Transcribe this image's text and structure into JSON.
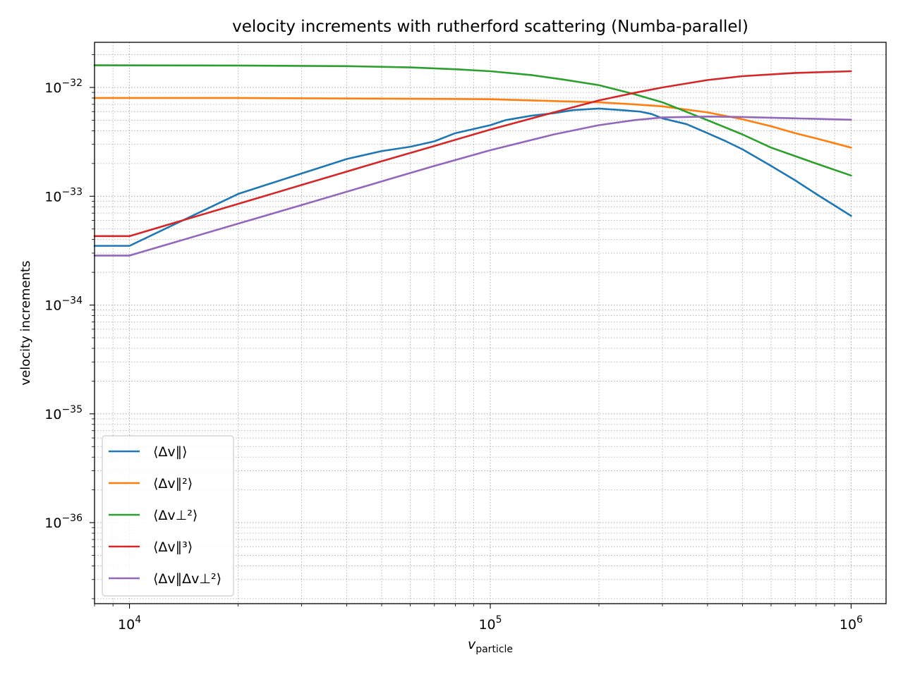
{
  "chart_data": {
    "type": "line",
    "title": "velocity increments with rutherford scattering (Numba-parallel)",
    "xlabel": "v_particle",
    "ylabel": "velocity increments",
    "xscale": "log",
    "yscale": "log",
    "xlim": [
      8000,
      1250000
    ],
    "ylim": [
      1.8e-37,
      2.6e-32
    ],
    "grid": true,
    "grid_style": "dotted, major and minor",
    "legend_position": "lower-left",
    "x_ticks": [
      {
        "value": 10000,
        "base": "10",
        "exp": "4"
      },
      {
        "value": 100000,
        "base": "10",
        "exp": "5"
      },
      {
        "value": 1000000,
        "base": "10",
        "exp": "6"
      }
    ],
    "y_ticks": [
      {
        "value": 1e-32,
        "base": "10",
        "exp": "−32"
      },
      {
        "value": 1e-33,
        "base": "10",
        "exp": "−33"
      },
      {
        "value": 1e-34,
        "base": "10",
        "exp": "−34"
      },
      {
        "value": 1e-35,
        "base": "10",
        "exp": "−35"
      },
      {
        "value": 1e-36,
        "base": "10",
        "exp": "−36"
      }
    ],
    "series": [
      {
        "name": "⟨Δv∥⟩",
        "color": "#1f77b4",
        "points": [
          [
            8000,
            3.5e-34
          ],
          [
            10000,
            3.5e-34
          ],
          [
            20000,
            1.05e-33
          ],
          [
            30000,
            1.62e-33
          ],
          [
            40000,
            2.2e-33
          ],
          [
            50000,
            2.6e-33
          ],
          [
            60000,
            2.85e-33
          ],
          [
            70000,
            3.2e-33
          ],
          [
            80000,
            3.8e-33
          ],
          [
            100000,
            4.5e-33
          ],
          [
            110000,
            5e-33
          ],
          [
            130000,
            5.5e-33
          ],
          [
            150000,
            5.8e-33
          ],
          [
            170000,
            6.2e-33
          ],
          [
            200000,
            6.4e-33
          ],
          [
            230000,
            6.2e-33
          ],
          [
            260000,
            6e-33
          ],
          [
            280000,
            5.7e-33
          ],
          [
            300000,
            5.2e-33
          ],
          [
            350000,
            4.6e-33
          ],
          [
            400000,
            3.8e-33
          ],
          [
            450000,
            3.2e-33
          ],
          [
            500000,
            2.7e-33
          ],
          [
            600000,
            1.9e-33
          ],
          [
            700000,
            1.4e-33
          ],
          [
            800000,
            1.05e-33
          ],
          [
            1000000,
            6.6e-34
          ]
        ]
      },
      {
        "name": "⟨Δv∥²⟩",
        "color": "#ff7f0e",
        "points": [
          [
            8000,
            8e-33
          ],
          [
            20000,
            8e-33
          ],
          [
            50000,
            7.9e-33
          ],
          [
            100000,
            7.8e-33
          ],
          [
            150000,
            7.5e-33
          ],
          [
            200000,
            7.3e-33
          ],
          [
            250000,
            7e-33
          ],
          [
            300000,
            6.7e-33
          ],
          [
            400000,
            5.9e-33
          ],
          [
            500000,
            5.1e-33
          ],
          [
            600000,
            4.4e-33
          ],
          [
            700000,
            3.8e-33
          ],
          [
            800000,
            3.4e-33
          ],
          [
            1000000,
            2.8e-33
          ]
        ]
      },
      {
        "name": "⟨Δv⊥²⟩",
        "color": "#2ca02c",
        "points": [
          [
            8000,
            1.6e-32
          ],
          [
            20000,
            1.59e-32
          ],
          [
            40000,
            1.57e-32
          ],
          [
            60000,
            1.53e-32
          ],
          [
            80000,
            1.47e-32
          ],
          [
            100000,
            1.41e-32
          ],
          [
            130000,
            1.3e-32
          ],
          [
            160000,
            1.18e-32
          ],
          [
            200000,
            1.05e-32
          ],
          [
            250000,
            8.7e-33
          ],
          [
            300000,
            7.3e-33
          ],
          [
            400000,
            5e-33
          ],
          [
            500000,
            3.7e-33
          ],
          [
            600000,
            2.8e-33
          ],
          [
            800000,
            2e-33
          ],
          [
            1000000,
            1.55e-33
          ]
        ]
      },
      {
        "name": "⟨Δv∥³⟩",
        "color": "#d62728",
        "points": [
          [
            8000,
            4.3e-34
          ],
          [
            10000,
            4.3e-34
          ],
          [
            20000,
            8.5e-34
          ],
          [
            30000,
            1.27e-33
          ],
          [
            50000,
            2.1e-33
          ],
          [
            70000,
            2.9e-33
          ],
          [
            100000,
            4.1e-33
          ],
          [
            150000,
            5.9e-33
          ],
          [
            200000,
            7.6e-33
          ],
          [
            250000,
            8.9e-33
          ],
          [
            300000,
            1e-32
          ],
          [
            400000,
            1.17e-32
          ],
          [
            500000,
            1.27e-32
          ],
          [
            700000,
            1.36e-32
          ],
          [
            1000000,
            1.41e-32
          ]
        ]
      },
      {
        "name": "⟨Δv∥Δv⊥²⟩",
        "color": "#9467bd",
        "points": [
          [
            8000,
            2.85e-34
          ],
          [
            10000,
            2.85e-34
          ],
          [
            20000,
            5.6e-34
          ],
          [
            30000,
            8.3e-34
          ],
          [
            50000,
            1.37e-33
          ],
          [
            70000,
            1.9e-33
          ],
          [
            100000,
            2.65e-33
          ],
          [
            150000,
            3.7e-33
          ],
          [
            200000,
            4.5e-33
          ],
          [
            250000,
            5e-33
          ],
          [
            300000,
            5.3e-33
          ],
          [
            400000,
            5.4e-33
          ],
          [
            500000,
            5.35e-33
          ],
          [
            700000,
            5.2e-33
          ],
          [
            1000000,
            5.05e-33
          ]
        ]
      }
    ]
  }
}
